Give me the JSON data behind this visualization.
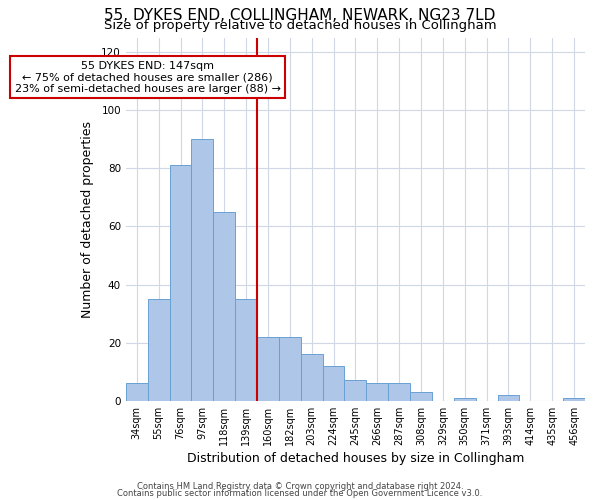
{
  "title": "55, DYKES END, COLLINGHAM, NEWARK, NG23 7LD",
  "subtitle": "Size of property relative to detached houses in Collingham",
  "xlabel": "Distribution of detached houses by size in Collingham",
  "ylabel": "Number of detached properties",
  "bar_labels": [
    "34sqm",
    "55sqm",
    "76sqm",
    "97sqm",
    "118sqm",
    "139sqm",
    "160sqm",
    "182sqm",
    "203sqm",
    "224sqm",
    "245sqm",
    "266sqm",
    "287sqm",
    "308sqm",
    "329sqm",
    "350sqm",
    "371sqm",
    "393sqm",
    "414sqm",
    "435sqm",
    "456sqm"
  ],
  "bar_values": [
    6,
    35,
    81,
    90,
    65,
    35,
    22,
    22,
    16,
    12,
    7,
    6,
    6,
    3,
    0,
    1,
    0,
    2,
    0,
    0,
    1
  ],
  "bar_color": "#aec6e8",
  "bar_edge_color": "#6aa0d4",
  "grid_color": "#d0d8e8",
  "annotation_line_x_label": "139sqm",
  "annotation_line_color": "#cc0000",
  "annotation_box_text": "55 DYKES END: 147sqm\n← 75% of detached houses are smaller (286)\n23% of semi-detached houses are larger (88) →",
  "ylim": [
    0,
    125
  ],
  "yticks": [
    0,
    20,
    40,
    60,
    80,
    100,
    120
  ],
  "footer_line1": "Contains HM Land Registry data © Crown copyright and database right 2024.",
  "footer_line2": "Contains public sector information licensed under the Open Government Licence v3.0.",
  "background_color": "#ffffff",
  "title_fontsize": 11,
  "subtitle_fontsize": 9.5,
  "axis_label_fontsize": 9,
  "tick_fontsize": 7,
  "footer_fontsize": 6,
  "annotation_fontsize": 8
}
